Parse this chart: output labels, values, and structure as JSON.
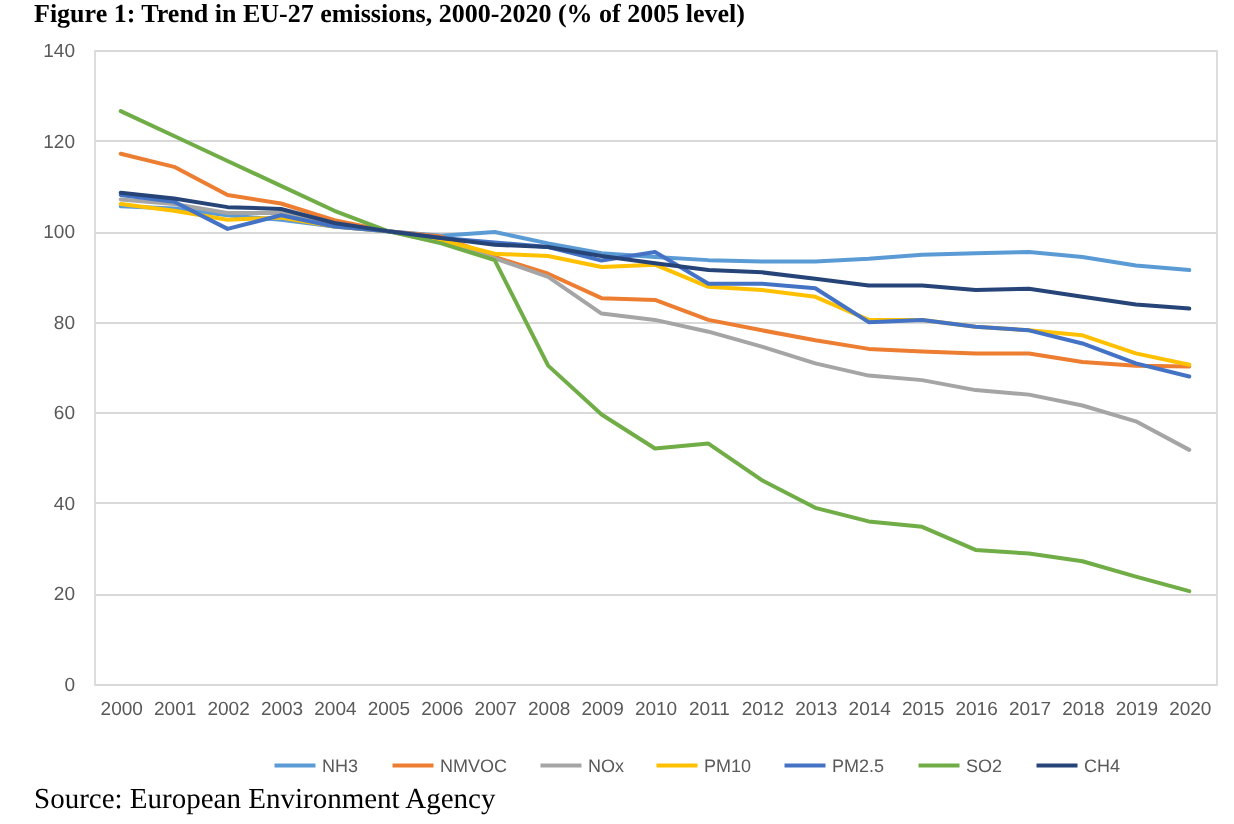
{
  "chart_data": {
    "type": "line",
    "title": "Figure 1: Trend in EU-27 emissions, 2000-2020 (% of 2005 level)",
    "categories": [
      "2000",
      "2001",
      "2002",
      "2003",
      "2004",
      "2005",
      "2006",
      "2007",
      "2008",
      "2009",
      "2010",
      "2011",
      "2012",
      "2013",
      "2014",
      "2015",
      "2016",
      "2017",
      "2018",
      "2019",
      "2020"
    ],
    "series": [
      {
        "name": "NH3",
        "color": "#5b9bd5",
        "values": [
          105.5,
          105,
          103.5,
          102.5,
          101,
          100,
          99,
          99.8,
          97.3,
          95.1,
          94.3,
          93.6,
          93.3,
          93.3,
          93.9,
          94.8,
          95.1,
          95.4,
          94.3,
          92.4,
          91.4
        ]
      },
      {
        "name": "NMVOC",
        "color": "#ed7d31",
        "values": [
          117.1,
          114.2,
          108,
          106.1,
          102.4,
          100,
          98.8,
          94.3,
          90.6,
          85.2,
          84.8,
          80.4,
          78.1,
          75.9,
          74,
          73.4,
          73,
          73,
          71.1,
          70.3,
          70.1
        ]
      },
      {
        "name": "NOx",
        "color": "#a5a5a5",
        "values": [
          107,
          106,
          104,
          104,
          101.5,
          100,
          97.5,
          94,
          89.9,
          81.8,
          80.4,
          77.8,
          74.5,
          70.8,
          68.1,
          67.1,
          64.9,
          63.9,
          61.5,
          58,
          51.7
        ]
      },
      {
        "name": "PM10",
        "color": "#ffc000",
        "values": [
          106,
          104.5,
          102.5,
          103,
          101,
          100,
          98,
          95,
          94.5,
          92.1,
          92.6,
          87.7,
          87,
          85.5,
          80.4,
          80.4,
          78.9,
          78.1,
          77,
          73,
          70.5
        ]
      },
      {
        "name": "PM2.5",
        "color": "#4472c4",
        "values": [
          108,
          106.5,
          100.5,
          103.5,
          101,
          100,
          98.5,
          97.5,
          96.5,
          93.5,
          95.4,
          88.4,
          88.4,
          87.4,
          79.9,
          80.4,
          78.9,
          78.1,
          75.2,
          70.8,
          67.9
        ]
      },
      {
        "name": "SO2",
        "color": "#70ad47",
        "values": [
          126.5,
          121,
          115.5,
          110,
          104.5,
          100,
          97.3,
          93.6,
          70.3,
          59.5,
          52,
          53.1,
          45,
          38.9,
          35.9,
          34.7,
          29.6,
          28.8,
          27.1,
          23.7,
          20.5
        ]
      },
      {
        "name": "CH4",
        "color": "#264478",
        "values": [
          108.5,
          107.2,
          105.3,
          104.9,
          101.8,
          100,
          98.5,
          97,
          96.5,
          94.5,
          92.9,
          91.4,
          90.9,
          89.5,
          88,
          88,
          87,
          87.3,
          85.5,
          83.8,
          82.9
        ]
      }
    ],
    "ylim": [
      0,
      140
    ],
    "yticks": [
      0,
      20,
      40,
      60,
      80,
      100,
      120,
      140
    ],
    "grid": "y",
    "legend": "bottom",
    "annotations": [
      "Source: European Environment Agency"
    ]
  }
}
